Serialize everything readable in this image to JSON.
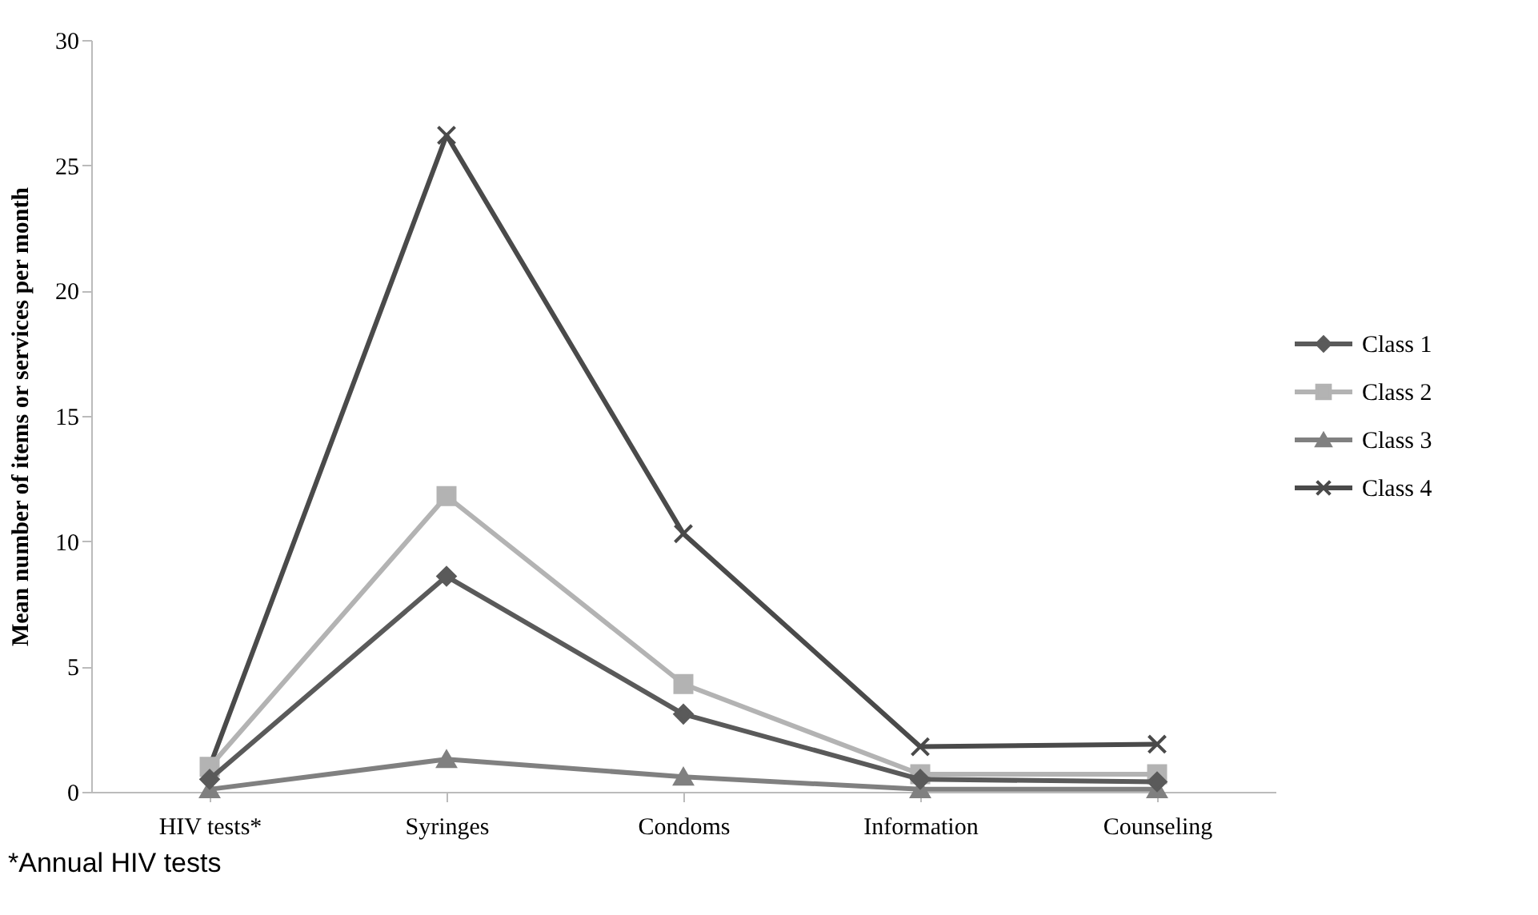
{
  "chart_data": {
    "type": "line",
    "ylabel": "Mean number of items or services per month",
    "categories": [
      "HIV tests*",
      "Syringes",
      "Condoms",
      "Information",
      "Counseling"
    ],
    "series": [
      {
        "name": "Class 1",
        "color": "#5a5a5a",
        "marker": "diamond",
        "values": [
          0.5,
          8.6,
          3.1,
          0.5,
          0.4
        ]
      },
      {
        "name": "Class 2",
        "color": "#b3b3b3",
        "marker": "square",
        "values": [
          1.0,
          11.8,
          4.3,
          0.7,
          0.7
        ]
      },
      {
        "name": "Class 3",
        "color": "#808080",
        "marker": "triangle",
        "values": [
          0.1,
          1.3,
          0.6,
          0.1,
          0.1
        ]
      },
      {
        "name": "Class 4",
        "color": "#4a4a4a",
        "marker": "cross",
        "values": [
          1.0,
          26.2,
          10.3,
          1.8,
          1.9
        ]
      }
    ],
    "ylim": [
      0,
      30
    ],
    "yticks": [
      0,
      5,
      10,
      15,
      20,
      25,
      30
    ],
    "grid": false,
    "legend": "right",
    "annotations": [
      "*Annual HIV tests"
    ]
  }
}
